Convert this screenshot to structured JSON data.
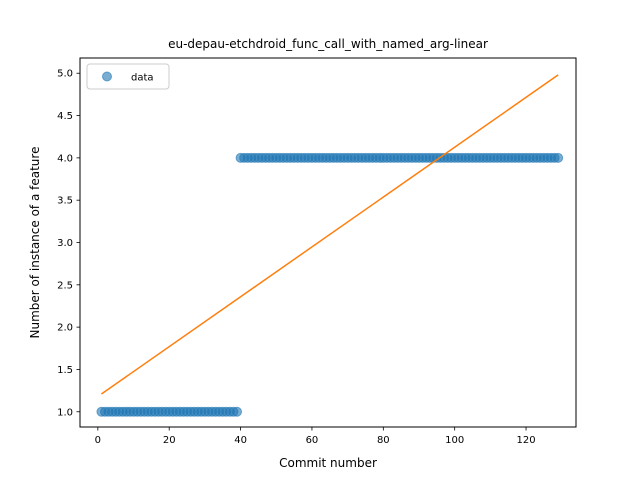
{
  "chart_data": {
    "type": "scatter",
    "title": "eu-depau-etchdroid_func_call_with_named_arg-linear",
    "xlabel": "Commit number",
    "ylabel": "Number of instance of a feature",
    "xlim": [
      -5,
      134
    ],
    "ylim": [
      0.82,
      5.18
    ],
    "xticks": [
      0,
      20,
      40,
      60,
      80,
      100,
      120
    ],
    "yticks": [
      1.0,
      1.5,
      2.0,
      2.5,
      3.0,
      3.5,
      4.0,
      4.5,
      5.0
    ],
    "ytick_labels": [
      "1.0",
      "1.5",
      "2.0",
      "2.5",
      "3.0",
      "3.5",
      "4.0",
      "4.5",
      "5.0"
    ],
    "legend": {
      "position": "top-left",
      "entries": [
        "data"
      ]
    },
    "grid": false,
    "series": [
      {
        "name": "data",
        "kind": "scatter",
        "color": "#1f77b4",
        "segments": [
          {
            "x_start": 1,
            "x_end": 39,
            "y": 1.0
          },
          {
            "x_start": 40,
            "x_end": 129,
            "y": 4.0
          }
        ]
      },
      {
        "kind": "line",
        "color": "#ff7f0e",
        "x": [
          1,
          129
        ],
        "y": [
          1.21,
          4.98
        ]
      }
    ]
  }
}
